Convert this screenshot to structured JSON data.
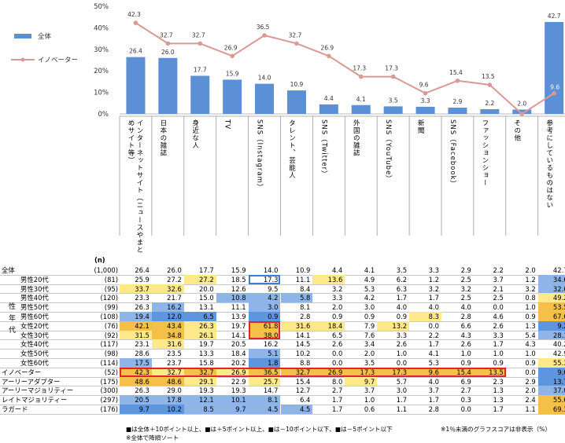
{
  "chart_data": {
    "type": "bar",
    "ylim": [
      0,
      50
    ],
    "yticks": [
      "0%",
      "10%",
      "20%",
      "30%",
      "40%",
      "50%"
    ],
    "legend": {
      "position": "top-left",
      "bar_label": "全体",
      "line_label": "イノベーター"
    },
    "colors": {
      "bar": "#5b8fd6",
      "line": "#d89a94",
      "yellow": "#ffe98a",
      "blue": "#8eb4e8",
      "orange": "#f5c048",
      "red": "#e0242c",
      "outline_blue": "#3b7fd4"
    },
    "categories": [
      "インターネットサイト（ニュースやまとめサイト等）",
      "日本の雑誌",
      "身近な人",
      "TV",
      "SNS（Instagram）",
      "タレント、芸能人",
      "SNS（Twitter）",
      "外国の雑誌",
      "SNS（YouTube）",
      "新聞",
      "SNS（Facebook）",
      "ファッションショー",
      "その他",
      "参考にしているものはない"
    ],
    "series": [
      {
        "name": "全体",
        "values": [
          26.4,
          26.0,
          17.7,
          15.9,
          14.0,
          10.9,
          4.4,
          4.1,
          3.5,
          3.3,
          2.9,
          2.2,
          2.0,
          42.7
        ]
      },
      {
        "name": "イノベーター",
        "values": [
          42.3,
          32.7,
          32.7,
          26.9,
          36.5,
          32.7,
          26.9,
          17.3,
          17.3,
          9.6,
          15.4,
          13.5,
          0.0,
          9.6
        ]
      }
    ],
    "bar_labels": [
      "26.4",
      "26.0",
      "17.7",
      "15.9",
      "14.0",
      "10.9",
      "4.4",
      "4.1",
      "3.5",
      "3.3",
      "2.9",
      "2.2",
      "2.0",
      "42.7"
    ],
    "line_labels": [
      "42.3",
      "32.7",
      "32.7",
      "26.9",
      "36.5",
      "32.7",
      "26.9",
      "17.3",
      "17.3",
      "9.6",
      "15.4",
      "13.5",
      "",
      "9.6"
    ]
  },
  "table": {
    "n_header": "(n)",
    "group_label": "性年代",
    "rows": [
      {
        "label": "全体",
        "n": "(1,000)",
        "values": [
          "26.4",
          "26.0",
          "17.7",
          "15.9",
          "14.0",
          "10.9",
          "4.4",
          "4.1",
          "3.5",
          "3.3",
          "2.9",
          "2.2",
          "2.0",
          "42.7"
        ],
        "hl": [
          "",
          "",
          "",
          "",
          "",
          "",
          "",
          "",
          "",
          "",
          "",
          "",
          "",
          ""
        ]
      },
      {
        "label": "男性20代",
        "n": "(81)",
        "values": [
          "25.9",
          "27.2",
          "27.2",
          "18.5",
          "17.3",
          "11.1",
          "13.6",
          "4.9",
          "6.2",
          "1.2",
          "2.5",
          "3.7",
          "1.2",
          "34.6"
        ],
        "hl": [
          "",
          "",
          "y",
          "",
          "",
          "",
          "y",
          "",
          "",
          "",
          "",
          "",
          "",
          "b"
        ]
      },
      {
        "label": "男性30代",
        "n": "(95)",
        "values": [
          "33.7",
          "32.6",
          "20.0",
          "12.6",
          "9.5",
          "8.4",
          "3.2",
          "5.3",
          "6.3",
          "3.2",
          "3.2",
          "2.1",
          "3.2",
          "32.6"
        ],
        "hl": [
          "y",
          "y",
          "",
          "",
          "",
          "",
          "",
          "",
          "",
          "",
          "",
          "",
          "",
          "b"
        ]
      },
      {
        "label": "男性40代",
        "n": "(120)",
        "values": [
          "23.3",
          "21.7",
          "15.0",
          "10.8",
          "4.2",
          "5.8",
          "3.3",
          "4.2",
          "1.7",
          "1.7",
          "2.5",
          "2.5",
          "0.8",
          "49.2"
        ],
        "hl": [
          "",
          "",
          "",
          "b",
          "b",
          "b",
          "",
          "",
          "",
          "",
          "",
          "",
          "",
          "y"
        ]
      },
      {
        "label": "男性50代",
        "n": "(99)",
        "values": [
          "26.3",
          "16.2",
          "13.1",
          "11.1",
          "3.0",
          "8.1",
          "2.0",
          "3.0",
          "4.0",
          "4.0",
          "4.0",
          "0.0",
          "1.0",
          "53.5"
        ],
        "hl": [
          "",
          "b",
          "",
          "",
          "b",
          "",
          "",
          "",
          "",
          "",
          "",
          "",
          "",
          "o"
        ]
      },
      {
        "label": "男性60代",
        "n": "(108)",
        "values": [
          "19.4",
          "12.0",
          "6.5",
          "13.9",
          "0.9",
          "2.8",
          "0.9",
          "0.9",
          "0.9",
          "8.3",
          "2.8",
          "4.6",
          "0.9",
          "67.6"
        ],
        "hl": [
          "b",
          "bd",
          "bd",
          "",
          "bd",
          "",
          "",
          "",
          "",
          "y",
          "",
          "",
          "",
          "o"
        ]
      },
      {
        "label": "女性20代",
        "n": "(76)",
        "values": [
          "42.1",
          "43.4",
          "26.3",
          "19.7",
          "61.8",
          "31.6",
          "18.4",
          "7.9",
          "13.2",
          "0.0",
          "6.6",
          "2.6",
          "1.3",
          "9.2"
        ],
        "hl": [
          "o",
          "o",
          "y",
          "",
          "o",
          "y",
          "y",
          "",
          "y",
          "",
          "",
          "",
          "",
          "bd"
        ]
      },
      {
        "label": "女性30代",
        "n": "(92)",
        "values": [
          "31.5",
          "34.8",
          "26.1",
          "14.1",
          "38.0",
          "14.1",
          "6.5",
          "7.6",
          "3.3",
          "2.2",
          "4.3",
          "3.3",
          "5.4",
          "28.1"
        ],
        "hl": [
          "y",
          "o",
          "y",
          "",
          "o",
          "",
          "",
          "",
          "",
          "",
          "",
          "",
          "",
          "b"
        ]
      },
      {
        "label": "女性40代",
        "n": "(117)",
        "values": [
          "23.1",
          "31.6",
          "19.7",
          "20.5",
          "16.2",
          "14.5",
          "2.6",
          "3.4",
          "2.6",
          "1.7",
          "2.6",
          "1.7",
          "4.3",
          "40.2"
        ],
        "hl": [
          "",
          "y",
          "",
          "",
          "",
          "",
          "",
          "",
          "",
          "",
          "",
          "",
          "",
          ""
        ]
      },
      {
        "label": "女性50代",
        "n": "(98)",
        "values": [
          "28.6",
          "23.5",
          "13.3",
          "18.4",
          "5.1",
          "10.2",
          "0.0",
          "2.0",
          "1.0",
          "4.1",
          "1.0",
          "1.0",
          "1.0",
          "42.9"
        ],
        "hl": [
          "",
          "",
          "",
          "",
          "b",
          "",
          "",
          "",
          "",
          "",
          "",
          "",
          "",
          ""
        ]
      },
      {
        "label": "女性60代",
        "n": "(114)",
        "values": [
          "17.5",
          "23.7",
          "15.8",
          "20.2",
          "1.8",
          "8.8",
          "0.0",
          "3.5",
          "0.0",
          "5.3",
          "0.9",
          "0.9",
          "0.9",
          "55.3"
        ],
        "hl": [
          "b",
          "",
          "",
          "",
          "bd",
          "",
          "",
          "",
          "",
          "",
          "",
          "",
          "",
          "y"
        ]
      },
      {
        "label": "イノベーター",
        "n": "(52)",
        "values": [
          "42.3",
          "32.7",
          "32.7",
          "26.9",
          "36.5",
          "32.7",
          "26.9",
          "17.3",
          "17.3",
          "9.6",
          "15.4",
          "13.5",
          "0.0",
          "9.6"
        ],
        "hl": [
          "o",
          "y",
          "o",
          "y",
          "o",
          "o",
          "o",
          "o",
          "o",
          "o",
          "o",
          "o",
          "",
          "bd"
        ]
      },
      {
        "label": "アーリーアダプター",
        "n": "(175)",
        "values": [
          "48.6",
          "48.6",
          "29.1",
          "22.9",
          "25.7",
          "15.4",
          "8.0",
          "9.7",
          "5.7",
          "4.0",
          "6.9",
          "2.3",
          "2.9",
          "13.7"
        ],
        "hl": [
          "o",
          "o",
          "y",
          "",
          "y",
          "",
          "",
          "y",
          "",
          "",
          "",
          "",
          "",
          "bd"
        ]
      },
      {
        "label": "アーリーマジョリティー",
        "n": "(300)",
        "values": [
          "26.3",
          "29.0",
          "19.3",
          "19.3",
          "14.7",
          "12.7",
          "2.7",
          "3.7",
          "3.0",
          "3.7",
          "2.7",
          "1.3",
          "2.0",
          "37.0"
        ],
        "hl": [
          "",
          "",
          "",
          "",
          "",
          "",
          "",
          "",
          "",
          "",
          "",
          "",
          "",
          "b"
        ]
      },
      {
        "label": "レイトマジョリティー",
        "n": "(297)",
        "values": [
          "20.5",
          "17.8",
          "12.1",
          "10.1",
          "8.1",
          "6.4",
          "1.7",
          "1.0",
          "1.7",
          "1.7",
          "0.3",
          "1.3",
          "2.4",
          "55.6"
        ],
        "hl": [
          "b",
          "b",
          "b",
          "b",
          "b",
          "",
          "",
          "",
          "",
          "",
          "",
          "",
          "",
          "o"
        ]
      },
      {
        "label": "ラガード",
        "n": "(176)",
        "values": [
          "9.7",
          "10.2",
          "8.5",
          "9.7",
          "4.5",
          "4.5",
          "1.7",
          "0.6",
          "1.1",
          "2.8",
          "0.0",
          "1.7",
          "1.1",
          "69.3"
        ],
        "hl": [
          "bd",
          "bd",
          "b",
          "b",
          "b",
          "b",
          "",
          "",
          "",
          "",
          "",
          "",
          "",
          "o"
        ]
      }
    ]
  },
  "notes": {
    "legend_line": "■は全体＋10ポイント以上、■は＋5ポイント以上、■は－10ポイント以下、■は－5ポイント以下",
    "sort_note": "※全体で降順ソート",
    "footnote": "※1％未満のグラフスコアは非表示（%）"
  }
}
